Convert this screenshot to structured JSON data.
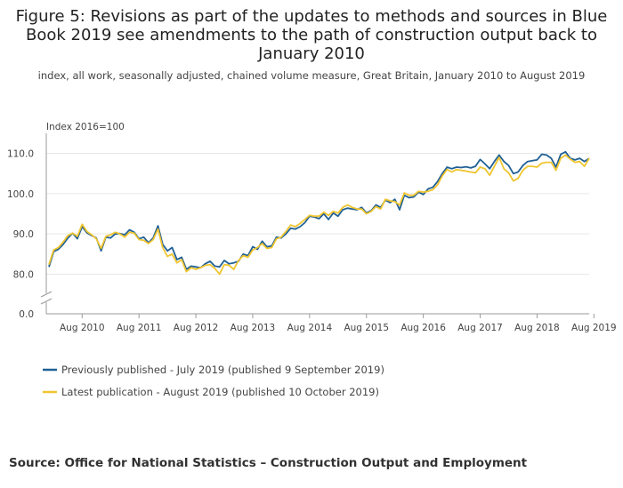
{
  "title": "Figure 5: Revisions as part of the updates to methods and sources in Blue Book 2019 see amendments to the path of construction output back to January 2010",
  "subtitle": "index, all work, seasonally adjusted, chained volume measure, Great Britain, January 2010 to August 2019",
  "source": "Source: Office for National Statistics – Construction Output and Employment",
  "colors": {
    "previous": "#206095",
    "latest": "#F0C52F",
    "grid": "#e6e6e6",
    "axis": "#9a9a9a"
  },
  "chart_data": {
    "type": "line",
    "ylabel": "Index 2016=100",
    "y_ticks": [
      "110.0",
      "100.0",
      "90.0",
      "80.0",
      "0.0"
    ],
    "y_tick_values": [
      110,
      100,
      90,
      80,
      0
    ],
    "y_axis_break": true,
    "ylim": [
      77,
      115
    ],
    "x_tick_labels": [
      "Aug 2010",
      "Aug 2011",
      "Aug 2012",
      "Aug 2013",
      "Aug 2014",
      "Aug 2015",
      "Aug 2016",
      "Aug 2017",
      "Aug 2018",
      "Aug 2019"
    ],
    "x_start": "Jan 2010",
    "x_end": "Aug 2019",
    "grid": true,
    "legend_position": "bottom-left",
    "series": [
      {
        "name": "Previously published - July 2019 (published 9 September 2019)",
        "color": "#206095",
        "values": [
          81.8,
          85.6,
          86.2,
          87.4,
          89.0,
          90.2,
          88.8,
          91.8,
          90.3,
          89.6,
          89.0,
          85.8,
          89.2,
          89.0,
          90.0,
          90.1,
          89.8,
          91.0,
          90.4,
          88.8,
          89.2,
          87.8,
          89.0,
          92.0,
          87.4,
          85.8,
          86.6,
          83.6,
          84.2,
          81.2,
          82.0,
          81.8,
          81.6,
          82.6,
          83.2,
          82.0,
          81.8,
          83.4,
          82.6,
          82.8,
          83.2,
          85.0,
          84.6,
          86.8,
          86.2,
          88.2,
          86.8,
          87.0,
          89.2,
          89.0,
          90.0,
          91.4,
          91.2,
          91.8,
          92.8,
          94.4,
          94.2,
          93.8,
          95.0,
          93.6,
          95.2,
          94.4,
          96.0,
          96.4,
          96.2,
          96.0,
          96.6,
          95.2,
          95.8,
          97.2,
          96.6,
          98.4,
          97.8,
          98.6,
          96.0,
          99.6,
          99.0,
          99.2,
          100.4,
          99.8,
          101.2,
          101.6,
          103.0,
          105.0,
          106.6,
          106.2,
          106.6,
          106.5,
          106.7,
          106.4,
          106.8,
          108.5,
          107.4,
          106.2,
          108.0,
          109.6,
          108.0,
          107.0,
          105.0,
          105.4,
          107.0,
          108.0,
          108.2,
          108.4,
          109.8,
          109.6,
          108.8,
          106.6,
          109.8,
          110.4,
          108.8,
          108.4,
          108.8,
          108.0,
          108.8
        ]
      },
      {
        "name": "Latest publication - August 2019 (published 10 October 2019)",
        "color": "#F0C52F",
        "values": [
          82.4,
          86.0,
          86.6,
          88.0,
          89.6,
          90.2,
          89.4,
          92.4,
          90.6,
          89.8,
          88.8,
          86.4,
          89.4,
          89.8,
          90.4,
          90.0,
          89.2,
          90.4,
          90.2,
          88.6,
          88.4,
          87.6,
          88.6,
          91.2,
          86.6,
          84.4,
          85.0,
          82.8,
          83.6,
          80.6,
          81.6,
          81.2,
          81.6,
          82.2,
          82.4,
          81.4,
          80.0,
          82.4,
          82.2,
          81.2,
          83.4,
          84.6,
          84.2,
          86.0,
          86.6,
          87.6,
          86.4,
          86.6,
          88.8,
          89.2,
          90.6,
          92.2,
          91.8,
          92.6,
          93.6,
          94.6,
          94.4,
          94.4,
          95.4,
          94.6,
          95.6,
          95.2,
          96.6,
          97.2,
          96.6,
          96.2,
          96.2,
          95.0,
          95.6,
          96.8,
          96.2,
          98.6,
          98.2,
          98.0,
          97.2,
          100.2,
          99.6,
          99.6,
          100.6,
          100.4,
          100.6,
          101.0,
          102.2,
          104.4,
          106.0,
          105.4,
          106.0,
          105.8,
          105.6,
          105.4,
          105.2,
          106.6,
          106.2,
          104.6,
          106.8,
          109.0,
          106.2,
          105.2,
          103.2,
          103.8,
          105.8,
          106.8,
          106.8,
          106.6,
          107.6,
          107.8,
          107.8,
          105.8,
          108.8,
          109.6,
          108.6,
          107.8,
          108.0,
          106.8,
          108.8
        ]
      }
    ]
  }
}
